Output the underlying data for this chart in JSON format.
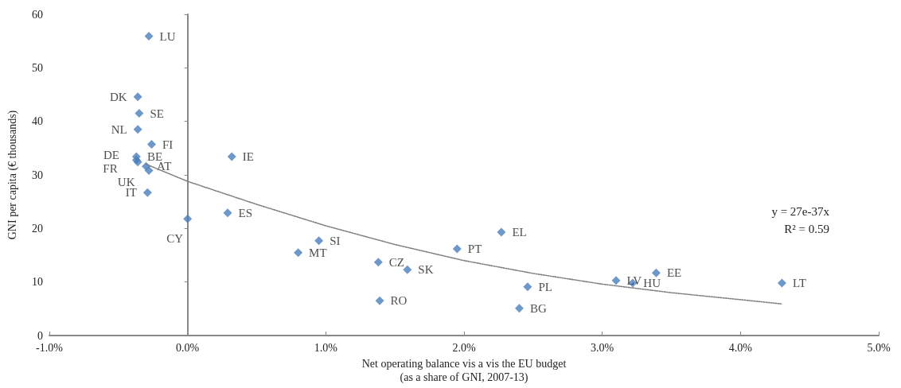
{
  "chart_data": {
    "type": "scatter",
    "xlabel": "Net operating balance vis a vis the EU budget\n(as a share of GNI, 2007-13)",
    "ylabel": "GNI per capita (€ thousands)",
    "xlim": [
      -1,
      5
    ],
    "xticks": [
      {
        "value": -1,
        "label": "-1.0%"
      },
      {
        "value": 0,
        "label": "0.0%"
      },
      {
        "value": 1,
        "label": "1.0%"
      },
      {
        "value": 2,
        "label": "2.0%"
      },
      {
        "value": 3,
        "label": "3.0%"
      },
      {
        "value": 4,
        "label": "4.0%"
      },
      {
        "value": 5,
        "label": "5.0%"
      }
    ],
    "ylim": [
      0,
      60
    ],
    "yticks": [
      0,
      10,
      20,
      30,
      40,
      50,
      60
    ],
    "marker": "diamond",
    "annotations": [
      "y = 27e-37x",
      "R² = 0.59"
    ],
    "series": [
      {
        "color": "#4a7ebb",
        "x": [
          -0.28,
          -0.36,
          -0.35,
          -0.36,
          -0.26,
          -0.3,
          -0.37,
          -0.37,
          -0.36,
          -0.28,
          -0.29,
          0.0,
          0.32,
          0.29,
          0.8,
          0.95,
          1.38,
          1.59,
          1.39,
          1.95,
          2.27,
          2.46,
          2.4,
          3.1,
          3.22,
          3.39,
          4.3
        ],
        "values": [
          55.9,
          44.6,
          41.5,
          38.5,
          35.7,
          31.6,
          33.4,
          32.8,
          32.4,
          30.8,
          26.7,
          21.8,
          33.4,
          22.9,
          15.5,
          17.7,
          13.7,
          12.3,
          6.5,
          16.2,
          19.3,
          9.1,
          5.1,
          10.3,
          9.8,
          11.7,
          9.8
        ],
        "value_labels": [
          "LU",
          "DK",
          "SE",
          "NL",
          "FI",
          "AT",
          "BE",
          "DE",
          "FR",
          "UK",
          "IT",
          "CY",
          "IE",
          "ES",
          "MT",
          "SI",
          "CZ",
          "SK",
          "RO",
          "PT",
          "EL",
          "PL",
          "BG",
          "LV",
          "HU",
          "EE",
          "LT"
        ]
      },
      {
        "type": "line",
        "color": "#808080",
        "marker": "none",
        "line_style": "dotted",
        "x": [
          -0.3,
          0,
          0.5,
          1,
          1.5,
          2,
          2.5,
          3,
          3.5,
          4,
          4.3
        ],
        "values": [
          32,
          28.8,
          24.5,
          20.5,
          17,
          14,
          11.6,
          9.6,
          8.0,
          6.7,
          5.9
        ]
      }
    ]
  }
}
